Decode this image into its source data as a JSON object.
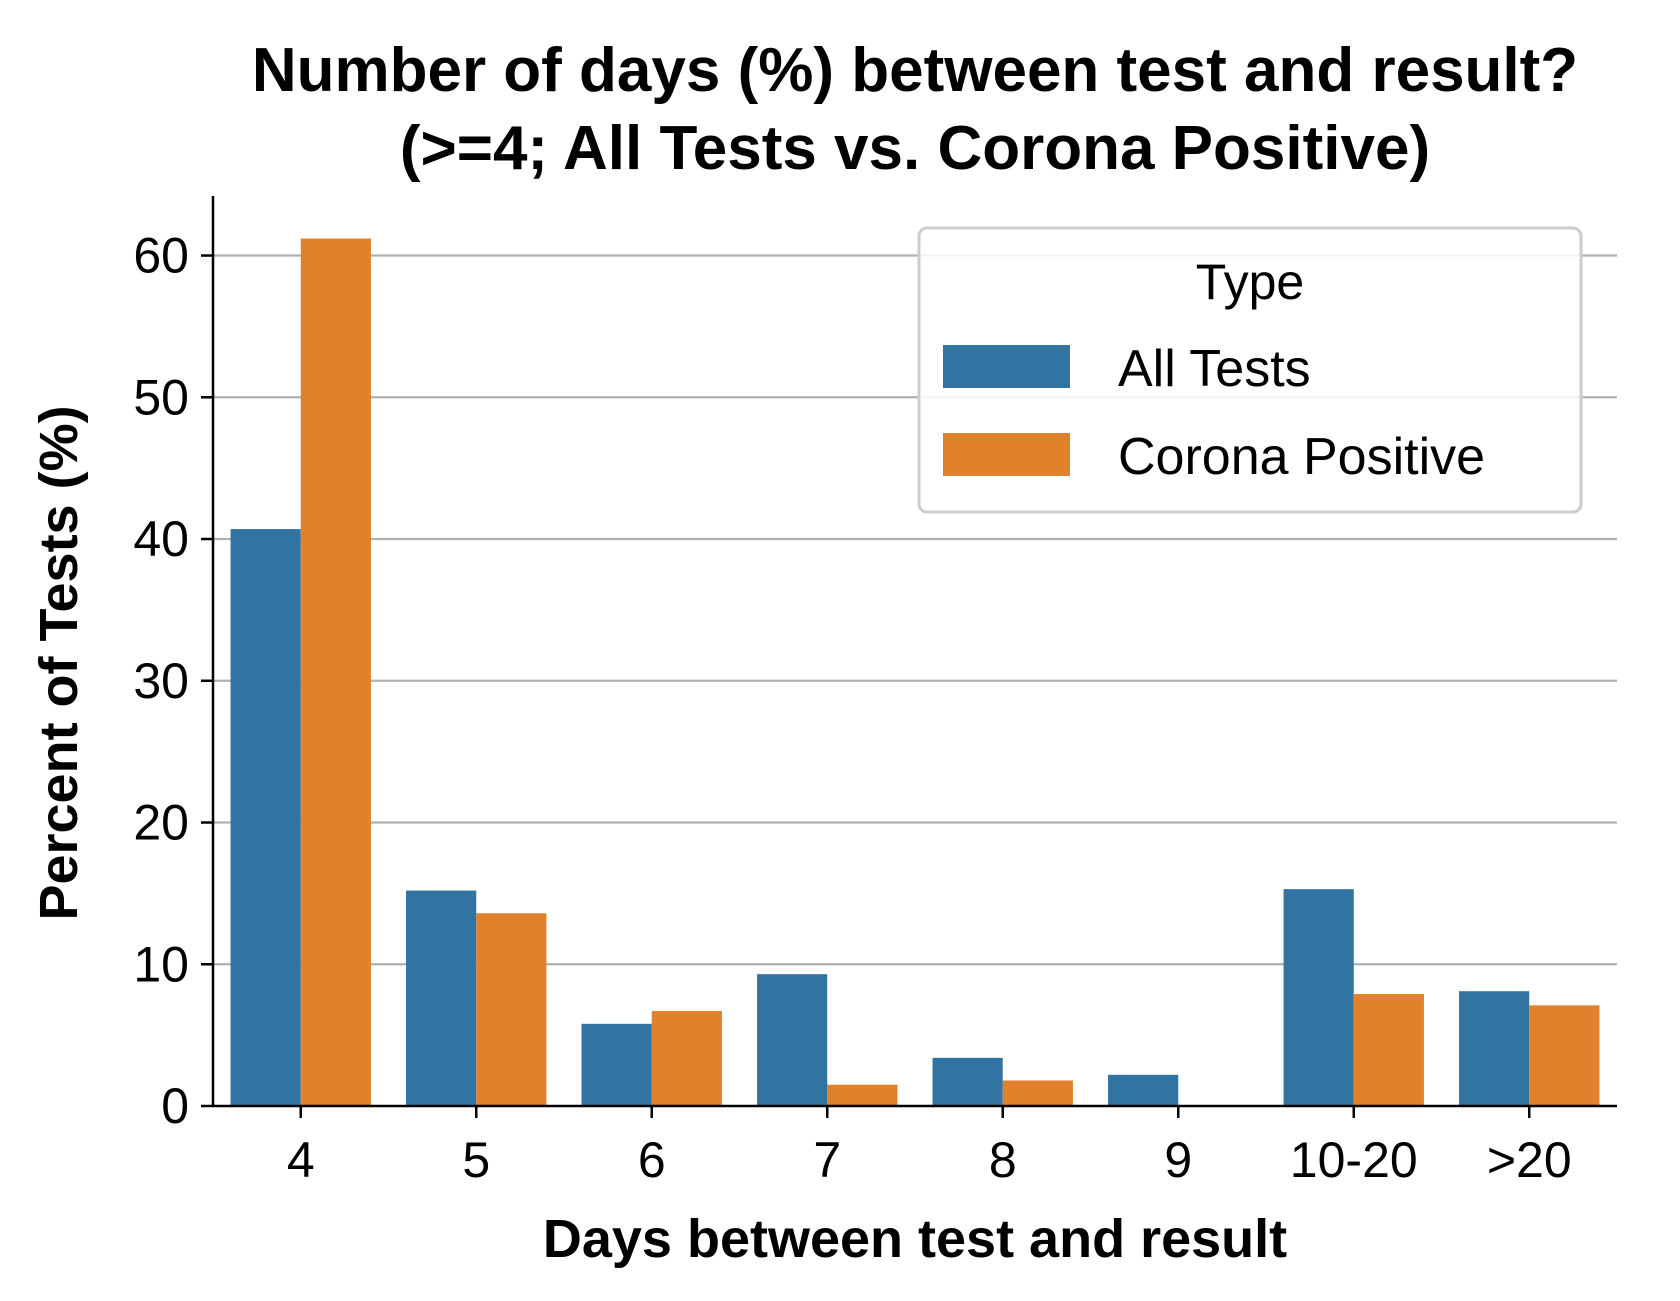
{
  "chart_data": {
    "type": "bar",
    "title": "Number of days (%) between test and result?",
    "subtitle": "(>=4; All Tests vs. Corona Positive)",
    "xlabel": "Days between test and result",
    "ylabel": "Percent of Tests (%)",
    "categories": [
      "4",
      "5",
      "6",
      "7",
      "8",
      "9",
      "10-20",
      ">20"
    ],
    "series": [
      {
        "name": "All Tests",
        "color": "#3274a1",
        "values": [
          40.7,
          15.2,
          5.8,
          9.3,
          3.4,
          2.2,
          15.3,
          8.1
        ]
      },
      {
        "name": "Corona Positive",
        "color": "#e1812c",
        "values": [
          61.2,
          13.6,
          6.7,
          1.5,
          1.8,
          0,
          7.9,
          7.1
        ]
      }
    ],
    "ylim": [
      0,
      64.2
    ],
    "yticks": [
      "0",
      "10",
      "20",
      "30",
      "40",
      "50",
      "60"
    ],
    "grid": "horizontal",
    "legend": {
      "title": "Type",
      "position": "upper-right"
    }
  }
}
